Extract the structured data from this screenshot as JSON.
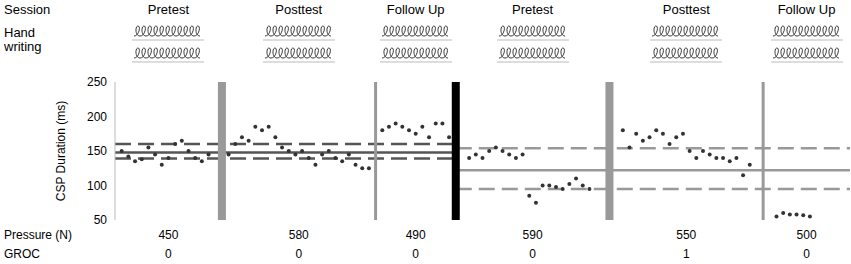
{
  "chart_data": {
    "type": "scatter",
    "y_label": "CSP Duration (ms)",
    "row_labels": {
      "session": "Session",
      "handwriting": "Hand writing",
      "pressure": "Pressure (N)",
      "groc": "GROC"
    },
    "x": [
      1,
      2,
      3,
      4,
      5,
      6,
      7,
      8,
      9,
      10,
      11,
      12,
      13,
      14,
      17,
      18,
      19,
      20,
      21,
      22,
      23,
      24,
      25,
      26,
      27,
      28,
      29,
      30,
      31,
      32,
      33,
      34,
      35,
      36,
      37,
      38,
      40,
      41,
      42,
      43,
      44,
      45,
      46,
      47,
      48,
      49,
      50,
      53,
      54,
      55,
      56,
      57,
      58,
      59,
      60,
      61,
      62,
      63,
      64,
      65,
      66,
      67,
      68,
      69,
      70,
      71,
      76,
      77,
      78,
      79,
      80,
      81,
      82,
      83,
      84,
      85,
      86,
      87,
      88,
      89,
      90,
      91,
      92,
      93,
      94,
      95,
      99,
      100,
      101,
      102,
      103,
      104
    ],
    "values": [
      150,
      142,
      135,
      138,
      155,
      145,
      130,
      140,
      160,
      165,
      150,
      140,
      135,
      145,
      145,
      160,
      170,
      165,
      185,
      180,
      185,
      170,
      155,
      150,
      145,
      150,
      140,
      130,
      145,
      150,
      140,
      135,
      145,
      130,
      125,
      125,
      180,
      185,
      190,
      185,
      180,
      175,
      185,
      170,
      190,
      190,
      170,
      140,
      145,
      140,
      150,
      155,
      150,
      145,
      140,
      145,
      85,
      75,
      100,
      100,
      98,
      95,
      102,
      110,
      100,
      95,
      180,
      155,
      175,
      165,
      170,
      180,
      175,
      160,
      170,
      175,
      150,
      140,
      150,
      145,
      140,
      140,
      135,
      140,
      115,
      130,
      55,
      60,
      58,
      58,
      57,
      55
    ],
    "color": "#333333",
    "marker": "circle",
    "xlim": [
      0,
      110
    ],
    "ylim": [
      50,
      250
    ],
    "yticks": [
      50,
      100,
      150,
      200,
      250
    ],
    "tick_labels": "y",
    "grid": false,
    "phases": [
      {
        "name": "Pretest",
        "start": 0,
        "end": 16,
        "pressure": 450,
        "groc": 0
      },
      {
        "name": "Posttest",
        "start": 16,
        "end": 39,
        "pressure": 580,
        "groc": 0
      },
      {
        "name": "Follow Up",
        "start": 39,
        "end": 51,
        "pressure": 490,
        "groc": 0
      },
      {
        "name": "Pretest",
        "start": 51,
        "end": 74,
        "pressure": 590,
        "groc": 0
      },
      {
        "name": "Posttest",
        "start": 74,
        "end": 97,
        "pressure": 550,
        "groc": 1
      },
      {
        "name": "Follow Up",
        "start": 97,
        "end": 110,
        "pressure": 500,
        "groc": 0
      }
    ],
    "reference_lines": [
      {
        "start": 0,
        "end": 51,
        "mean": 148,
        "lower": 139,
        "upper": 160,
        "color": "#555555"
      },
      {
        "start": 51,
        "end": 110,
        "mean": 122,
        "lower": 95,
        "upper": 154,
        "color": "#999999"
      }
    ]
  }
}
